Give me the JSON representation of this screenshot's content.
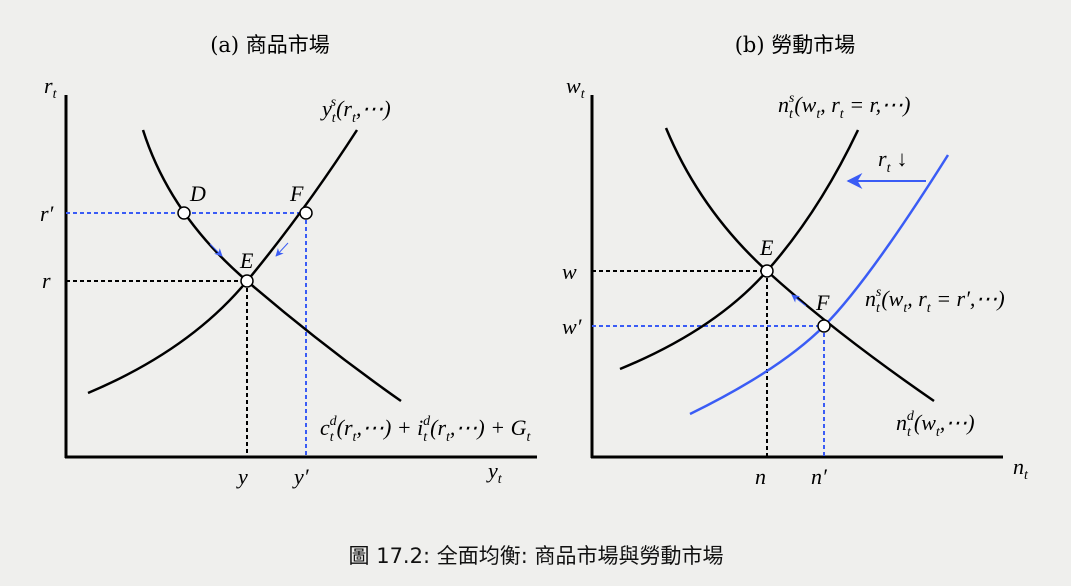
{
  "panel_a": {
    "title": "(a) 商品市場",
    "y_axis": [
      "r",
      "t"
    ],
    "x_axis": [
      "y",
      "t"
    ],
    "ticks_y": [
      "r′",
      "r"
    ],
    "ticks_x": [
      "y",
      "y′"
    ],
    "points": [
      "D",
      "E",
      "F"
    ],
    "supply_label": [
      "y",
      "t",
      "s",
      "(r",
      "t",
      ",⋯)"
    ],
    "demand_label": [
      "c",
      "t",
      "d",
      "(r",
      "t",
      ",⋯) + ",
      "i",
      "t",
      "d",
      "(r",
      "t",
      ",⋯) + G",
      "t"
    ]
  },
  "panel_b": {
    "title": "(b) 勞動市場",
    "y_axis": [
      "w",
      "t"
    ],
    "x_axis": [
      "n",
      "t"
    ],
    "ticks_y": [
      "w",
      "w′"
    ],
    "ticks_x": [
      "n",
      "n′"
    ],
    "points": [
      "E",
      "F"
    ],
    "supply_label": [
      "n",
      "t",
      "s",
      "(w",
      "t",
      ", r",
      "t",
      " = r,⋯)"
    ],
    "shift_label": [
      "r",
      "t",
      "↓"
    ],
    "new_supply_label": [
      "n",
      "t",
      "s",
      "(w",
      "t",
      ", r",
      "t",
      " = r′,⋯)"
    ],
    "demand_label": [
      "n",
      "t",
      "d",
      "(w",
      "t",
      ",⋯)"
    ]
  },
  "caption": "圖 17.2: 全面均衡: 商品市場與勞動市場",
  "colors": {
    "curve": "#000000",
    "shift": "#3a5cf5",
    "background": "#efefed"
  }
}
